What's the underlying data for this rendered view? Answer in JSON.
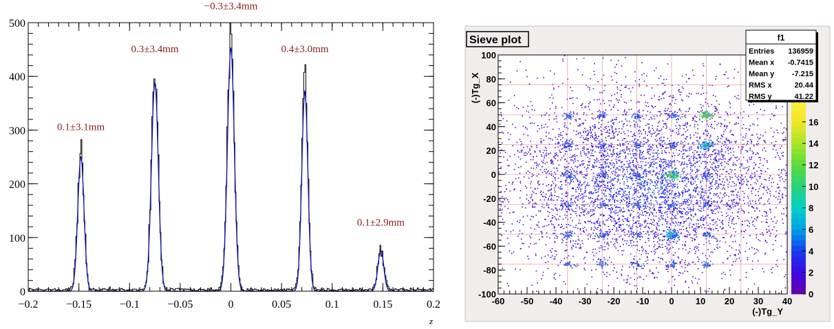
{
  "chart_data": [
    {
      "type": "line",
      "title": "",
      "xlabel": "z",
      "ylabel": "",
      "xlim": [
        -0.2,
        0.2
      ],
      "ylim": [
        0,
        500
      ],
      "x_ticks": [
        -0.2,
        -0.15,
        -0.1,
        -0.05,
        0,
        0.05,
        0.1,
        0.15,
        0.2
      ],
      "x_tick_labels": [
        "−0.2",
        "−0.15",
        "−0.1",
        "−0.05",
        "0",
        "0.05",
        "0.1",
        "0.15",
        "0.2"
      ],
      "y_ticks": [
        0,
        100,
        200,
        300,
        400,
        500
      ],
      "y_tick_labels": [
        "0",
        "100",
        "200",
        "300",
        "400",
        "500"
      ],
      "grid": false,
      "series": [
        {
          "style": "histogram",
          "color": "#000000",
          "peaks": [
            {
              "x": -0.148,
              "height": 258
            },
            {
              "x": -0.075,
              "height": 405
            },
            {
              "x": 0.0,
              "height": 478
            },
            {
              "x": 0.073,
              "height": 410
            },
            {
              "x": 0.148,
              "height": 82
            }
          ],
          "baseline": 3
        },
        {
          "style": "gaussian-fit",
          "color": "#1a1aa8",
          "peaks": [
            {
              "x": -0.148,
              "height": 250,
              "sigma": 0.0031
            },
            {
              "x": -0.075,
              "height": 388,
              "sigma": 0.0034
            },
            {
              "x": 0.0,
              "height": 452,
              "sigma": 0.0034
            },
            {
              "x": 0.073,
              "height": 372,
              "sigma": 0.003
            },
            {
              "x": 0.148,
              "height": 76,
              "sigma": 0.0029
            }
          ]
        }
      ],
      "annotations": [
        {
          "text": "0.1±3.1mm",
          "x": -0.148,
          "y": 300
        },
        {
          "text": "0.3±3.4mm",
          "x": -0.075,
          "y": 445
        },
        {
          "text": "−0.3±3.4mm",
          "x": 0.0,
          "y": 525
        },
        {
          "text": "0.4±3.0mm",
          "x": 0.073,
          "y": 445
        },
        {
          "text": "0.1±2.9mm",
          "x": 0.148,
          "y": 122
        }
      ],
      "annotation_color": "#8b1a1a"
    },
    {
      "type": "heatmap",
      "title": "Sieve plot",
      "xlabel": "(-)Tg_Y",
      "ylabel": "(-)Tg_X",
      "xlim": [
        -60,
        40
      ],
      "ylim": [
        -100,
        100
      ],
      "x_ticks": [
        -60,
        -50,
        -40,
        -30,
        -20,
        -10,
        0,
        10,
        20,
        30,
        40
      ],
      "x_tick_labels": [
        "-60",
        "-50",
        "-40",
        "-30",
        "-20",
        "-10",
        "0",
        "10",
        "20",
        "30",
        "40"
      ],
      "y_ticks": [
        -100,
        -80,
        -60,
        -40,
        -20,
        0,
        20,
        40,
        60,
        80,
        100
      ],
      "y_tick_labels": [
        "-100",
        "-80",
        "-60",
        "-40",
        "-20",
        "0",
        "20",
        "40",
        "60",
        "80",
        "100"
      ],
      "grid": true,
      "grid_lines_x": [
        -36,
        -24,
        -12,
        0,
        12,
        24
      ],
      "grid_lines_y": [
        -75,
        -50,
        -25,
        0,
        25,
        50,
        75
      ],
      "z_range": [
        0,
        18
      ],
      "z_ticks": [
        0,
        2,
        4,
        6,
        8,
        10,
        12,
        14,
        16
      ],
      "z_tick_labels": [
        "0",
        "2",
        "4",
        "6",
        "8",
        "10",
        "12",
        "14",
        "16"
      ],
      "blob": {
        "center": [
          -8,
          -8
        ],
        "radius_x": 50,
        "radius_y": 72
      },
      "hole_columns": [
        -36,
        -24,
        -12,
        0,
        12
      ],
      "hole_rows": [
        -75,
        -50,
        -25,
        0,
        25,
        50
      ],
      "hot_spots": [
        {
          "x": 0,
          "y": 0,
          "level": 12
        },
        {
          "x": 12,
          "y": 50,
          "level": 13
        },
        {
          "x": 12,
          "y": 25,
          "level": 8
        },
        {
          "x": 0,
          "y": -50,
          "level": 7
        }
      ],
      "stats_box": {
        "title": "f1",
        "rows": [
          {
            "label": "Entries",
            "value": "136959"
          },
          {
            "label": "Mean x",
            "value": "-0.7415"
          },
          {
            "label": "Mean y",
            "value": "-7.215"
          },
          {
            "label": "RMS x",
            "value": "20.44"
          },
          {
            "label": "RMS y",
            "value": "41.22"
          }
        ]
      }
    }
  ]
}
